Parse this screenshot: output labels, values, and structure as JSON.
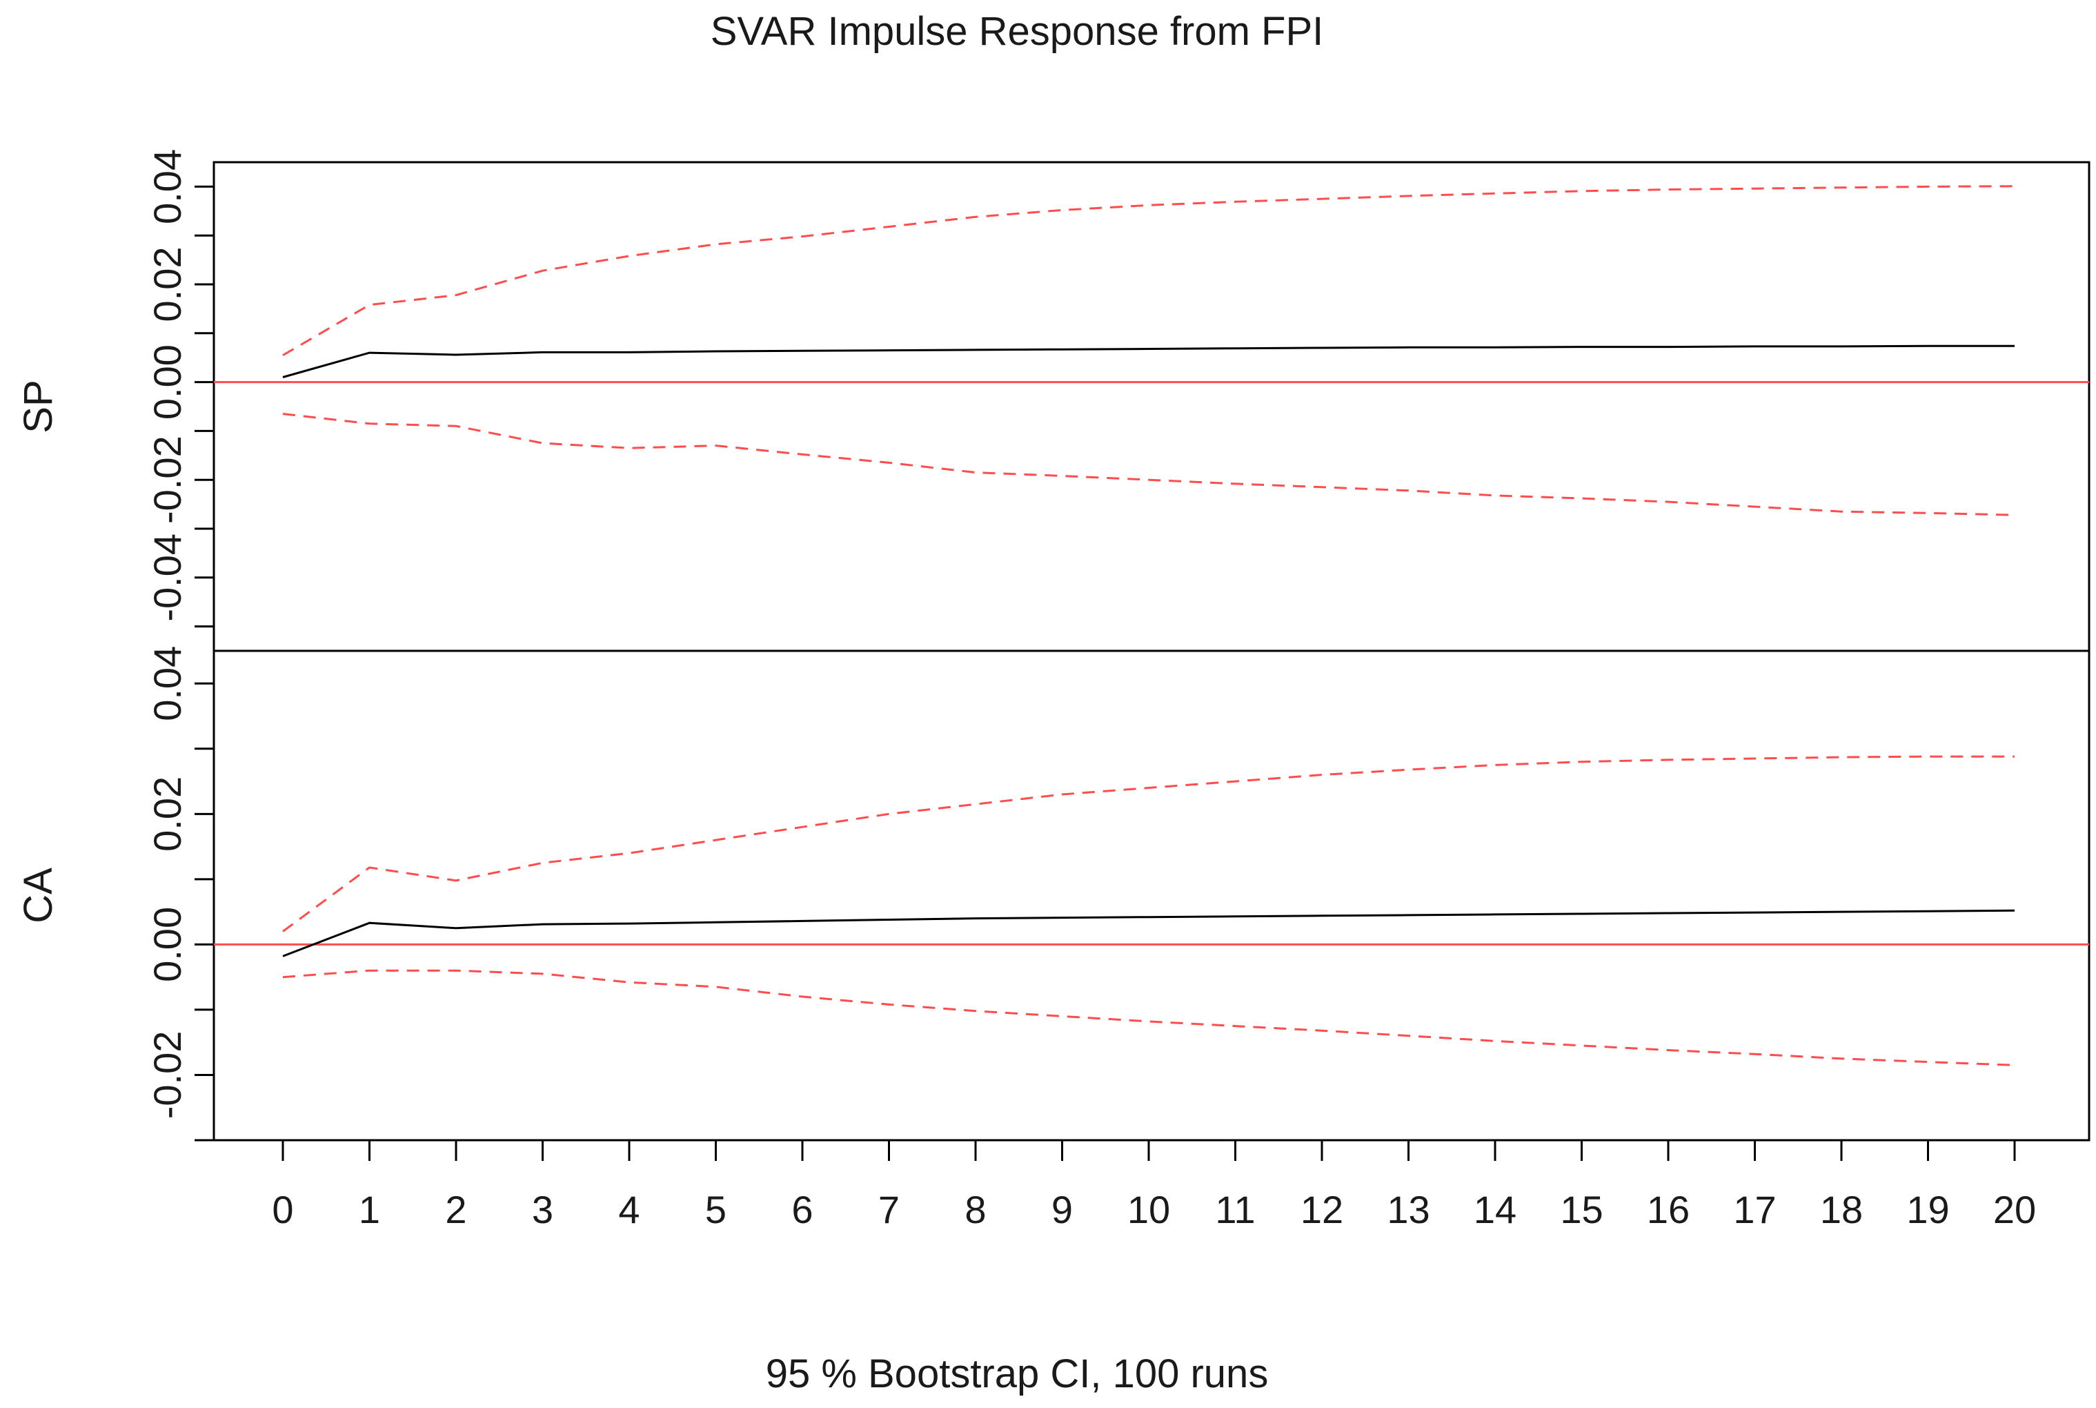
{
  "chart_data": {
    "type": "line",
    "title": "SVAR Impulse Response from FPI",
    "xlabel": "95 % Bootstrap CI,  100 runs",
    "x": [
      0,
      1,
      2,
      3,
      4,
      5,
      6,
      7,
      8,
      9,
      10,
      11,
      12,
      13,
      14,
      15,
      16,
      17,
      18,
      19,
      20
    ],
    "xlim": [
      0,
      20
    ],
    "colors": {
      "response": "#000000",
      "ci": "#ff4d4d",
      "zero": "#ff4d4d",
      "frame": "#000000"
    },
    "panels": [
      {
        "ylabel": "SP",
        "ylim": [
          -0.055,
          0.045
        ],
        "yticks": [
          0.04,
          0.02,
          0.0,
          -0.02,
          -0.04
        ],
        "ytick_labels": [
          "0.04",
          "0.02",
          "0.00",
          "-0.02",
          "-0.04"
        ],
        "series": [
          {
            "name": "upper",
            "style": "dashed",
            "values": [
              0.0055,
              0.0158,
              0.0178,
              0.0228,
              0.0258,
              0.0282,
              0.0298,
              0.0318,
              0.0338,
              0.0352,
              0.0362,
              0.0369,
              0.0375,
              0.0381,
              0.0386,
              0.0391,
              0.0394,
              0.0396,
              0.0398,
              0.04,
              0.0401
            ]
          },
          {
            "name": "irf",
            "style": "solid",
            "values": [
              0.001,
              0.006,
              0.0056,
              0.0061,
              0.0061,
              0.0063,
              0.0064,
              0.0065,
              0.0066,
              0.0067,
              0.0068,
              0.0069,
              0.007,
              0.0071,
              0.0071,
              0.0072,
              0.0072,
              0.0073,
              0.0073,
              0.0074,
              0.0074
            ]
          },
          {
            "name": "lower",
            "style": "dashed",
            "values": [
              -0.0065,
              -0.0085,
              -0.009,
              -0.0125,
              -0.0135,
              -0.013,
              -0.0148,
              -0.0165,
              -0.0185,
              -0.0192,
              -0.02,
              -0.0208,
              -0.0215,
              -0.0222,
              -0.0232,
              -0.0238,
              -0.0245,
              -0.0255,
              -0.0265,
              -0.0268,
              -0.0272
            ]
          }
        ]
      },
      {
        "ylabel": "CA",
        "ylim": [
          -0.03,
          0.045
        ],
        "yticks": [
          0.04,
          0.02,
          0.0,
          -0.02
        ],
        "ytick_labels": [
          "0.04",
          "0.02",
          "0.00",
          "-0.02"
        ],
        "series": [
          {
            "name": "upper",
            "style": "dashed",
            "values": [
              0.002,
              0.0118,
              0.0098,
              0.0125,
              0.014,
              0.016,
              0.018,
              0.02,
              0.0215,
              0.023,
              0.024,
              0.025,
              0.026,
              0.0268,
              0.0275,
              0.028,
              0.0283,
              0.0285,
              0.0287,
              0.0288,
              0.0288
            ]
          },
          {
            "name": "irf",
            "style": "solid",
            "values": [
              -0.0018,
              0.0033,
              0.0025,
              0.0031,
              0.0032,
              0.0034,
              0.0036,
              0.0038,
              0.004,
              0.0041,
              0.0042,
              0.0043,
              0.0044,
              0.0045,
              0.0046,
              0.0047,
              0.0048,
              0.0049,
              0.005,
              0.0051,
              0.0052
            ]
          },
          {
            "name": "lower",
            "style": "dashed",
            "values": [
              -0.005,
              -0.004,
              -0.004,
              -0.0045,
              -0.0058,
              -0.0065,
              -0.008,
              -0.0092,
              -0.0102,
              -0.011,
              -0.0118,
              -0.0125,
              -0.0132,
              -0.014,
              -0.0148,
              -0.0155,
              -0.0162,
              -0.0168,
              -0.0175,
              -0.018,
              -0.0185
            ]
          }
        ]
      }
    ]
  }
}
